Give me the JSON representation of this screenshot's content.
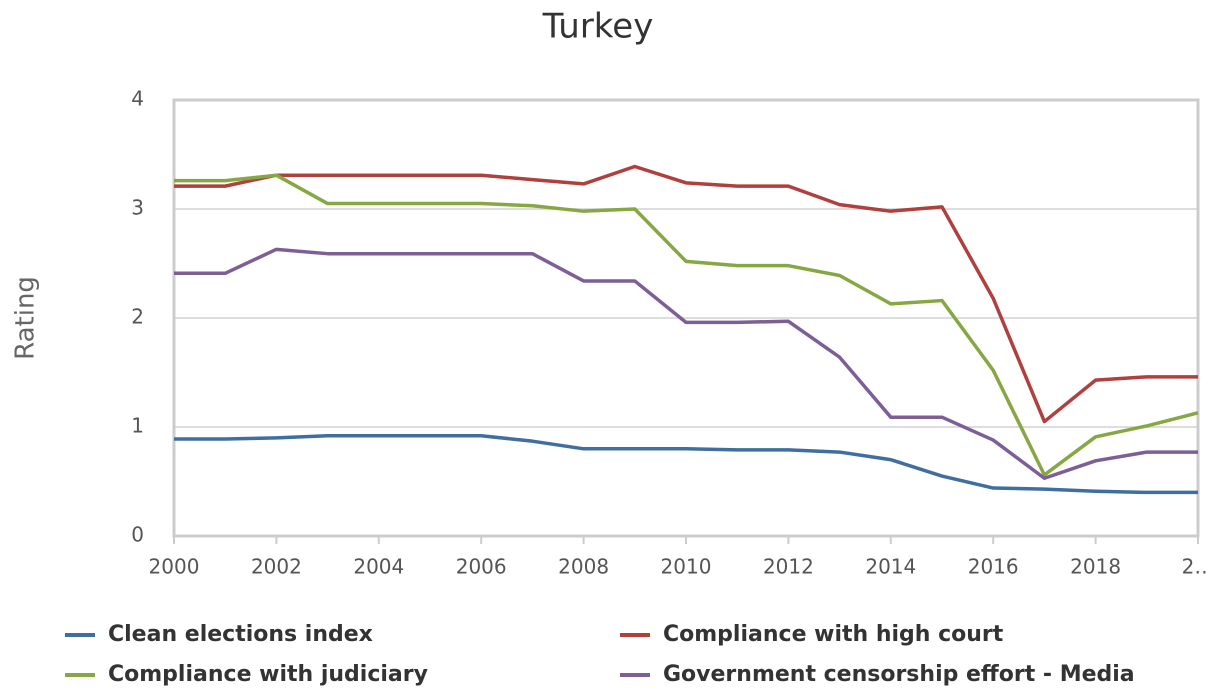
{
  "chart_data": {
    "type": "line",
    "title": "Turkey",
    "y_label": "Rating",
    "x": [
      2000,
      2001,
      2002,
      2003,
      2004,
      2005,
      2006,
      2007,
      2008,
      2009,
      2010,
      2011,
      2012,
      2013,
      2014,
      2015,
      2016,
      2017,
      2018,
      2019,
      2020
    ],
    "series": [
      {
        "name": "Clean elections index",
        "color": "#3f6fa0",
        "values": [
          0.89,
          0.89,
          0.9,
          0.92,
          0.92,
          0.92,
          0.92,
          0.87,
          0.8,
          0.8,
          0.8,
          0.79,
          0.79,
          0.77,
          0.7,
          0.55,
          0.44,
          0.43,
          0.41,
          0.4,
          0.4
        ]
      },
      {
        "name": "Compliance with high court",
        "color": "#b0403d",
        "values": [
          3.21,
          3.21,
          3.31,
          3.31,
          3.31,
          3.31,
          3.31,
          3.27,
          3.23,
          3.39,
          3.24,
          3.21,
          3.21,
          3.04,
          2.98,
          3.02,
          2.18,
          1.05,
          1.43,
          1.46,
          1.46
        ]
      },
      {
        "name": "Compliance with judiciary",
        "color": "#86a843",
        "values": [
          3.26,
          3.26,
          3.31,
          3.05,
          3.05,
          3.05,
          3.05,
          3.03,
          2.98,
          3.0,
          2.52,
          2.48,
          2.48,
          2.39,
          2.13,
          2.16,
          1.52,
          0.56,
          0.91,
          1.01,
          1.13
        ]
      },
      {
        "name": "Government censorship effort - Media",
        "color": "#7d5e97",
        "values": [
          2.41,
          2.41,
          2.63,
          2.59,
          2.59,
          2.59,
          2.59,
          2.59,
          2.34,
          2.34,
          1.96,
          1.96,
          1.97,
          1.64,
          1.09,
          1.09,
          0.88,
          0.53,
          0.69,
          0.77,
          0.77
        ]
      }
    ],
    "xlim": [
      2000,
      2020
    ],
    "xticks": [
      2000,
      2002,
      2004,
      2006,
      2008,
      2010,
      2012,
      2014,
      2016,
      2018,
      {
        "value": 2020,
        "label": "2…"
      }
    ],
    "ylim": [
      0,
      4
    ],
    "yticks": [
      0,
      1,
      2,
      3,
      4
    ],
    "grid": true
  }
}
